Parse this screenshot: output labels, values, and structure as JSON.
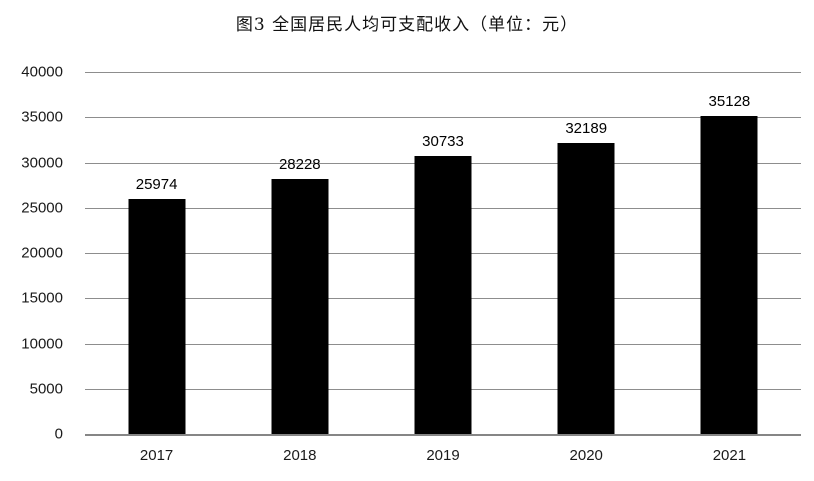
{
  "title": "图3 全国居民人均可支配收入（单位：元）",
  "chart_data": {
    "type": "bar",
    "title": "图3 全国居民人均可支配收入（单位：元）",
    "categories": [
      "2017",
      "2018",
      "2019",
      "2020",
      "2021"
    ],
    "values": [
      25974,
      28228,
      30733,
      32189,
      35128
    ],
    "data_labels": [
      "25974",
      "28228",
      "30733",
      "32189",
      "35128"
    ],
    "xlabel": "",
    "ylabel": "",
    "ylim": [
      0,
      40000
    ],
    "ytick_step": 5000,
    "yticks": [
      0,
      5000,
      10000,
      15000,
      20000,
      25000,
      30000,
      35000,
      40000
    ],
    "grid": "horizontal",
    "legend": "none",
    "bar_color": "#000000",
    "gridline_color": "#8d8d8d",
    "axis_line_color": "#868686",
    "text_color": "#000000",
    "background_color": "#ffffff"
  }
}
